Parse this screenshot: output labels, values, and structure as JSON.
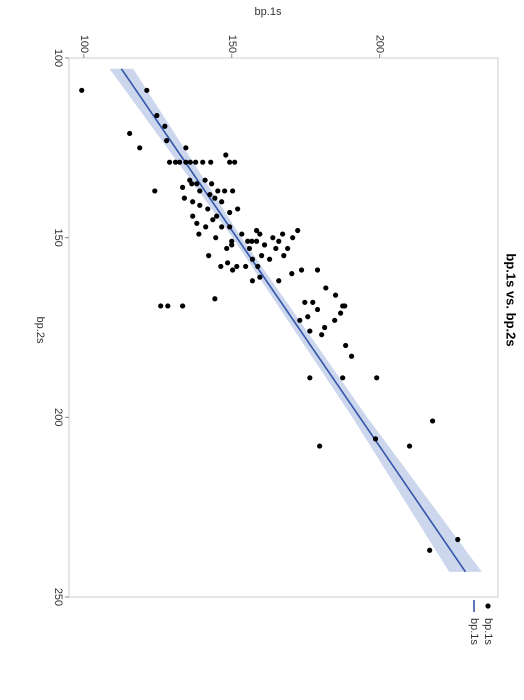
{
  "chart_data": {
    "type": "scatter",
    "title": "bp.1s vs. bp.2s",
    "xlabel": "bp.2s",
    "ylabel": "bp.1s",
    "xlim": [
      100,
      250
    ],
    "xticks": [
      100,
      150,
      200,
      250
    ],
    "ylim": [
      95,
      240
    ],
    "yticks": [
      100,
      150,
      200
    ],
    "series": [
      {
        "name": "bp.1s",
        "color": "#000000",
        "x": [
          109,
          109,
          116,
          119,
          121,
          125,
          123,
          125,
          129,
          129,
          129,
          129,
          129,
          129,
          129,
          129,
          129,
          129,
          127,
          137,
          136,
          134,
          135,
          135,
          137,
          134,
          135,
          138,
          137,
          137,
          137,
          140,
          139,
          139,
          140,
          141,
          142,
          144,
          143,
          142,
          144,
          146,
          147,
          145,
          147,
          147,
          149,
          150,
          151,
          149,
          151,
          148,
          149,
          151,
          152,
          153,
          155,
          158,
          157,
          159,
          158,
          158,
          156,
          158,
          153,
          155,
          156,
          151,
          150,
          149,
          150,
          148,
          151,
          152,
          155,
          153,
          153,
          161,
          162,
          162,
          160,
          159,
          169,
          169,
          169,
          167,
          159,
          164,
          166,
          169,
          168,
          168,
          170,
          175,
          171,
          169,
          173,
          177,
          173,
          172,
          176,
          180,
          183,
          189,
          189,
          189,
          208,
          206,
          208,
          201,
          237,
          234
        ],
        "values": [
          99.3,
          121.3,
          124.7,
          127.4,
          115.5,
          118.9,
          128,
          134.5,
          129,
          131,
          132.4,
          134.5,
          136,
          137.8,
          140.2,
          142.9,
          149.3,
          151,
          148,
          124,
          133.4,
          135.8,
          136.5,
          138.2,
          139.2,
          141,
          143.2,
          142.6,
          145.3,
          147.6,
          150.3,
          146.6,
          144.3,
          134,
          136.8,
          139.2,
          141.9,
          144.9,
          149.3,
          152,
          136.8,
          138.2,
          141.2,
          143.6,
          146.6,
          149.3,
          138.9,
          144.6,
          150,
          153.4,
          155.4,
          158.4,
          159.5,
          156.8,
          150,
          148.3,
          142.2,
          146.3,
          148.6,
          150.3,
          151.7,
          154.7,
          157,
          158.8,
          156,
          160.1,
          162.8,
          158.4,
          163.9,
          167.2,
          170.6,
          172.3,
          165.9,
          161.1,
          167.6,
          168.9,
          164.9,
          159.5,
          157,
          165.9,
          170.3,
          173.6,
          126,
          128.4,
          133.4,
          144.3,
          179,
          181.8,
          185.1,
          188.2,
          177.4,
          174.7,
          179,
          181.4,
          186.8,
          187.5,
          184.8,
          180.4,
          173,
          175.7,
          176.4,
          188.5,
          190.5,
          176.4,
          187.5,
          199,
          179.7,
          198.6,
          210.1,
          217.9,
          216.9,
          226.4
        ]
      },
      {
        "name": "bp.1s",
        "type": "line",
        "color": "#3356a8",
        "band_color": "#c3cfea",
        "x": [
          103,
          243
        ],
        "values": [
          112.7,
          229
        ],
        "band_x": [
          103,
          150,
          200,
          243
        ],
        "band_lower": [
          108.7,
          150.3,
          190.8,
          223.5
        ],
        "band_upper": [
          116.7,
          153.3,
          195.8,
          234.5
        ]
      }
    ]
  }
}
